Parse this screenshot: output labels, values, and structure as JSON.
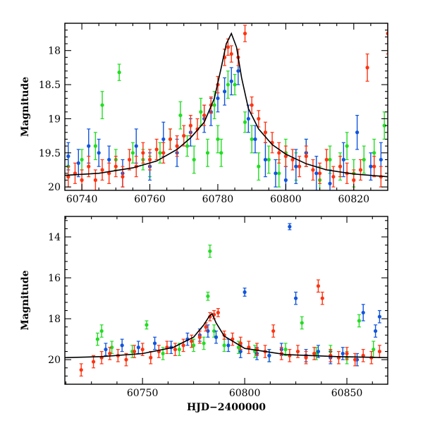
{
  "chart_data": [
    {
      "type": "scatter",
      "xlabel": "",
      "ylabel": "Magnitude",
      "xlim": [
        60735,
        60830
      ],
      "ylim": [
        20.05,
        17.6
      ],
      "y_inverted": true,
      "x_ticks": [
        60740,
        60760,
        60780,
        60800,
        60820
      ],
      "y_ticks": [
        18,
        18.5,
        19,
        19.5,
        20
      ],
      "tick_labels_x": [
        "60740",
        "60760",
        "60780",
        "60800",
        "60820"
      ],
      "tick_labels_y": [
        "18",
        "18.5",
        "19",
        "19.5",
        "20"
      ],
      "series_colors": [
        "#22dd22",
        "#1155dd",
        "#ff3311"
      ],
      "model_curve": {
        "color": "#000000",
        "x": [
          60735,
          60745,
          60755,
          60762,
          60768,
          60772,
          60776,
          60779,
          60781,
          60782.5,
          60784,
          60785.5,
          60787,
          60789,
          60792,
          60796,
          60800,
          60806,
          60812,
          60820,
          60830
        ],
        "y": [
          19.83,
          19.8,
          19.72,
          19.62,
          19.45,
          19.28,
          19.05,
          18.7,
          18.25,
          17.9,
          17.75,
          17.95,
          18.4,
          18.85,
          19.15,
          19.38,
          19.52,
          19.66,
          19.75,
          19.81,
          19.85
        ]
      },
      "series": [
        {
          "color": "#22dd22",
          "x": [
            60736,
            60740,
            60744,
            60746,
            60750,
            60751,
            60755,
            60758,
            60760,
            60763,
            60766,
            60769,
            60771,
            60773,
            60775,
            60777,
            60779,
            60780,
            60781,
            60783,
            60785,
            60788,
            60790,
            60792,
            60795,
            60798,
            60800,
            60803,
            60806,
            60810,
            60813,
            60816,
            60818,
            60820,
            60823,
            60826,
            60829
          ],
          "y": [
            19.7,
            19.6,
            19.4,
            18.8,
            19.6,
            18.32,
            19.5,
            19.6,
            19.7,
            19.5,
            19.3,
            18.95,
            19.4,
            19.6,
            18.9,
            19.5,
            18.8,
            19.3,
            19.5,
            18.5,
            18.5,
            19.05,
            19.3,
            19.7,
            19.6,
            19.8,
            19.5,
            19.7,
            19.5,
            19.9,
            19.6,
            19.7,
            19.4,
            19.8,
            19.6,
            19.5,
            19.1
          ],
          "err": [
            0.15,
            0.15,
            0.2,
            0.2,
            0.15,
            0.12,
            0.15,
            0.15,
            0.15,
            0.15,
            0.15,
            0.2,
            0.15,
            0.2,
            0.2,
            0.2,
            0.2,
            0.2,
            0.2,
            0.2,
            0.15,
            0.15,
            0.2,
            0.2,
            0.2,
            0.2,
            0.2,
            0.2,
            0.2,
            0.2,
            0.2,
            0.2,
            0.2,
            0.2,
            0.2,
            0.2,
            0.2
          ]
        },
        {
          "color": "#1155dd",
          "x": [
            60736,
            60739,
            60742,
            60745,
            60748,
            60752,
            60756,
            60760,
            60764,
            60768,
            60772,
            60776,
            60778,
            60780,
            60782,
            60784,
            60786,
            60789,
            60791,
            60794,
            60797,
            60800,
            60803,
            60806,
            60809,
            60813,
            60817,
            60821,
            60825,
            60828
          ],
          "y": [
            19.55,
            19.65,
            19.4,
            19.5,
            19.6,
            19.8,
            19.4,
            19.7,
            19.3,
            19.5,
            19.2,
            19.0,
            18.9,
            18.7,
            18.6,
            18.45,
            18.3,
            19.0,
            19.3,
            19.6,
            19.8,
            19.9,
            19.7,
            19.5,
            19.8,
            19.95,
            19.6,
            19.2,
            19.7,
            19.6
          ],
          "err": [
            0.2,
            0.2,
            0.25,
            0.2,
            0.2,
            0.2,
            0.25,
            0.2,
            0.25,
            0.2,
            0.2,
            0.2,
            0.2,
            0.2,
            0.2,
            0.2,
            0.2,
            0.2,
            0.2,
            0.25,
            0.2,
            0.2,
            0.25,
            0.2,
            0.25,
            0.2,
            0.25,
            0.25,
            0.2,
            0.25
          ]
        },
        {
          "color": "#ff3311",
          "x": [
            60736,
            60738,
            60740,
            60742,
            60744,
            60746,
            60748,
            60750,
            60752,
            60754,
            60756,
            60758,
            60760,
            60762,
            60764,
            60766,
            60768,
            60770,
            60772,
            60774,
            60776,
            60778,
            60780,
            60782,
            60783,
            60784,
            60786,
            60788,
            60790,
            60792,
            60794,
            60796,
            60798,
            60800,
            60802,
            60804,
            60806,
            60808,
            60810,
            60812,
            60814,
            60816,
            60818,
            60820,
            60822,
            60824,
            60826,
            60828,
            60830
          ],
          "y": [
            19.85,
            19.8,
            19.9,
            19.7,
            19.9,
            19.75,
            19.8,
            19.7,
            19.85,
            19.6,
            19.7,
            19.5,
            19.6,
            19.45,
            19.5,
            19.3,
            19.4,
            19.25,
            19.1,
            19.15,
            18.95,
            18.8,
            18.5,
            18.1,
            17.95,
            18.05,
            18.1,
            17.75,
            18.8,
            19.0,
            19.2,
            19.35,
            19.5,
            19.55,
            19.6,
            19.7,
            19.55,
            19.75,
            19.8,
            19.6,
            19.85,
            19.7,
            19.8,
            19.9,
            19.75,
            18.25,
            19.7,
            19.85,
            17.75
          ],
          "err": [
            0.15,
            0.15,
            0.15,
            0.15,
            0.15,
            0.15,
            0.15,
            0.15,
            0.15,
            0.15,
            0.15,
            0.15,
            0.15,
            0.15,
            0.15,
            0.15,
            0.15,
            0.15,
            0.15,
            0.15,
            0.15,
            0.12,
            0.12,
            0.12,
            0.12,
            0.12,
            0.12,
            0.12,
            0.12,
            0.12,
            0.15,
            0.15,
            0.15,
            0.15,
            0.15,
            0.15,
            0.15,
            0.15,
            0.15,
            0.15,
            0.15,
            0.15,
            0.15,
            0.15,
            0.15,
            0.2,
            0.15,
            0.15,
            0.3
          ]
        }
      ]
    },
    {
      "type": "scatter",
      "xlabel": "HJD−2400000",
      "ylabel": "Magnitude",
      "xlim": [
        60712,
        60870
      ],
      "ylim": [
        21.2,
        13.0
      ],
      "y_inverted": true,
      "x_ticks": [
        60750,
        60800,
        60850
      ],
      "y_ticks": [
        14,
        16,
        18,
        20
      ],
      "tick_labels_x": [
        "60750",
        "60800",
        "60850"
      ],
      "tick_labels_y": [
        "14",
        "16",
        "18",
        "20"
      ],
      "series_colors": [
        "#22dd22",
        "#1155dd",
        "#ff3311"
      ],
      "model_curve": {
        "color": "#000000",
        "x": [
          60712,
          60730,
          60750,
          60765,
          60775,
          60780,
          60782.5,
          60784,
          60786,
          60790,
          60800,
          60820,
          60845,
          60870
        ],
        "y": [
          19.9,
          19.85,
          19.7,
          19.4,
          18.9,
          18.3,
          17.9,
          17.75,
          18.2,
          18.85,
          19.45,
          19.75,
          19.85,
          19.9
        ]
      },
      "series": [
        {
          "color": "#22dd22",
          "x": [
            60728,
            60730,
            60735,
            60745,
            60752,
            60760,
            60768,
            60775,
            60780,
            60782,
            60783,
            60785,
            60790,
            60797,
            60805,
            60812,
            60820,
            60828,
            60835,
            60842,
            60850,
            60856,
            60863
          ],
          "y": [
            19.0,
            18.6,
            19.4,
            19.6,
            18.3,
            19.7,
            19.5,
            19.3,
            19.2,
            16.9,
            14.7,
            18.6,
            19.3,
            19.4,
            19.6,
            19.8,
            19.5,
            18.2,
            19.7,
            19.6,
            19.9,
            18.1,
            19.5
          ],
          "err": [
            0.3,
            0.3,
            0.3,
            0.3,
            0.2,
            0.3,
            0.3,
            0.3,
            0.3,
            0.2,
            0.3,
            0.3,
            0.3,
            0.3,
            0.3,
            0.3,
            0.3,
            0.3,
            0.3,
            0.3,
            0.3,
            0.3,
            0.4
          ]
        },
        {
          "color": "#1155dd",
          "x": [
            60732,
            60740,
            60748,
            60756,
            60764,
            60772,
            60778,
            60782,
            60786,
            60792,
            60798,
            60800,
            60806,
            60812,
            60818,
            60822,
            60825,
            60830,
            60836,
            60842,
            60848,
            60855,
            60858,
            60864,
            60866
          ],
          "y": [
            19.5,
            19.3,
            19.4,
            19.2,
            19.4,
            19.0,
            18.8,
            18.6,
            18.9,
            19.3,
            19.6,
            16.7,
            19.7,
            19.8,
            19.5,
            13.5,
            17.0,
            19.8,
            19.6,
            19.9,
            19.7,
            20.0,
            17.7,
            18.6,
            17.9
          ],
          "err": [
            0.3,
            0.3,
            0.3,
            0.3,
            0.3,
            0.3,
            0.3,
            0.3,
            0.3,
            0.3,
            0.3,
            0.2,
            0.3,
            0.3,
            0.3,
            0.15,
            0.3,
            0.3,
            0.3,
            0.3,
            0.3,
            0.3,
            0.4,
            0.3,
            0.3
          ]
        },
        {
          "color": "#ff3311",
          "x": [
            60720,
            60726,
            60730,
            60734,
            60738,
            60742,
            60746,
            60750,
            60754,
            60758,
            60762,
            60766,
            60770,
            60774,
            60778,
            60781,
            60783,
            60785,
            60787,
            60790,
            60794,
            60798,
            60802,
            60806,
            60810,
            60814,
            60818,
            60822,
            60826,
            60830,
            60834,
            60836,
            60838,
            60842,
            60846,
            60850,
            60854,
            60858,
            60862,
            60866
          ],
          "y": [
            20.5,
            20.1,
            19.9,
            19.7,
            19.8,
            20.0,
            19.6,
            19.5,
            19.9,
            19.6,
            19.4,
            19.5,
            19.3,
            19.1,
            18.9,
            18.4,
            17.9,
            17.8,
            17.7,
            18.8,
            19.0,
            19.2,
            19.4,
            19.5,
            19.6,
            18.6,
            19.7,
            19.8,
            19.6,
            19.9,
            19.7,
            16.4,
            17.0,
            19.8,
            19.9,
            19.7,
            20.0,
            19.8,
            19.9,
            19.6
          ],
          "err": [
            0.3,
            0.3,
            0.3,
            0.3,
            0.3,
            0.3,
            0.3,
            0.3,
            0.3,
            0.3,
            0.3,
            0.3,
            0.3,
            0.3,
            0.3,
            0.2,
            0.2,
            0.2,
            0.2,
            0.2,
            0.3,
            0.3,
            0.3,
            0.3,
            0.3,
            0.3,
            0.3,
            0.3,
            0.3,
            0.3,
            0.3,
            0.3,
            0.3,
            0.3,
            0.3,
            0.3,
            0.3,
            0.3,
            0.3,
            0.3
          ]
        }
      ]
    }
  ]
}
